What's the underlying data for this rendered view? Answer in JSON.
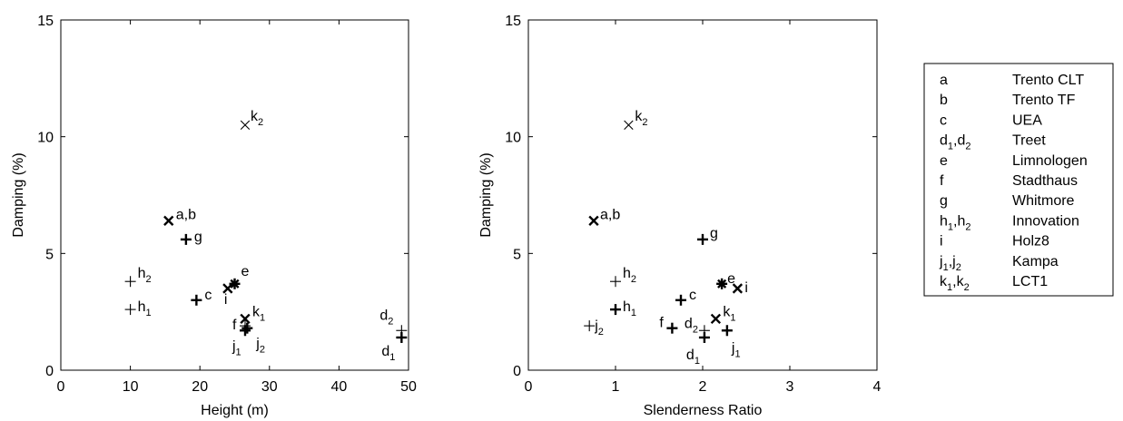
{
  "chart_data": [
    {
      "type": "scatter",
      "xlabel": "Height (m)",
      "ylabel": "Damping (%)",
      "xlim": [
        0,
        50
      ],
      "ylim": [
        0,
        15
      ],
      "xticks": [
        "0",
        "10",
        "20",
        "30",
        "40",
        "50"
      ],
      "yticks": [
        "0",
        "5",
        "10",
        "15"
      ],
      "grid": false,
      "points": [
        {
          "x": 15.5,
          "y": 6.4,
          "marker": "x-bold",
          "label": "a,b"
        },
        {
          "x": 18.0,
          "y": 5.6,
          "marker": "plus-bold",
          "label": "g"
        },
        {
          "x": 26.5,
          "y": 10.5,
          "marker": "x-thin",
          "label": "k",
          "sub": "2"
        },
        {
          "x": 10.0,
          "y": 3.8,
          "marker": "plus-thin",
          "label": "h",
          "sub": "2"
        },
        {
          "x": 10.0,
          "y": 2.6,
          "marker": "plus-thin",
          "label": "h",
          "sub": "1"
        },
        {
          "x": 19.5,
          "y": 3.0,
          "marker": "plus-bold",
          "label": "c"
        },
        {
          "x": 25.0,
          "y": 3.7,
          "marker": "star-bold",
          "label": "e"
        },
        {
          "x": 24.0,
          "y": 3.5,
          "marker": "x-bold",
          "label": "i"
        },
        {
          "x": 26.5,
          "y": 2.2,
          "marker": "x-bold",
          "label": "k",
          "sub": "1"
        },
        {
          "x": 26.5,
          "y": 1.9,
          "marker": "plus-thin",
          "label": "f"
        },
        {
          "x": 26.5,
          "y": 1.7,
          "marker": "plus-bold",
          "label": "j",
          "sub": "1"
        },
        {
          "x": 26.8,
          "y": 1.8,
          "marker": "plus-bold",
          "label": "j",
          "sub": "2"
        },
        {
          "x": 49.0,
          "y": 1.7,
          "marker": "plus-thin",
          "label": "d",
          "sub": "2"
        },
        {
          "x": 49.0,
          "y": 1.4,
          "marker": "plus-bold",
          "label": "d",
          "sub": "1"
        }
      ]
    },
    {
      "type": "scatter",
      "xlabel": "Slenderness Ratio",
      "ylabel": "Damping (%)",
      "xlim": [
        0,
        4
      ],
      "ylim": [
        0,
        15
      ],
      "xticks": [
        "0",
        "1",
        "2",
        "3",
        "4"
      ],
      "yticks": [
        "0",
        "5",
        "10",
        "15"
      ],
      "grid": false,
      "points": [
        {
          "x": 1.15,
          "y": 10.5,
          "marker": "x-thin",
          "label": "k",
          "sub": "2"
        },
        {
          "x": 0.75,
          "y": 6.4,
          "marker": "x-bold",
          "label": "a,b"
        },
        {
          "x": 2.0,
          "y": 5.6,
          "marker": "plus-bold",
          "label": "g"
        },
        {
          "x": 1.0,
          "y": 3.8,
          "marker": "plus-thin",
          "label": "h",
          "sub": "2"
        },
        {
          "x": 1.0,
          "y": 2.6,
          "marker": "plus-bold",
          "label": "h",
          "sub": "1"
        },
        {
          "x": 0.7,
          "y": 1.9,
          "marker": "plus-thin",
          "label": "j",
          "sub": "2"
        },
        {
          "x": 1.75,
          "y": 3.0,
          "marker": "plus-bold",
          "label": "c"
        },
        {
          "x": 2.22,
          "y": 3.7,
          "marker": "star-bold",
          "label": "e"
        },
        {
          "x": 2.4,
          "y": 3.5,
          "marker": "x-bold",
          "label": "i"
        },
        {
          "x": 1.65,
          "y": 1.8,
          "marker": "plus-bold",
          "label": "f"
        },
        {
          "x": 2.15,
          "y": 2.2,
          "marker": "x-bold",
          "label": "k",
          "sub": "1"
        },
        {
          "x": 2.02,
          "y": 1.7,
          "marker": "plus-thin",
          "label": "d",
          "sub": "2"
        },
        {
          "x": 2.02,
          "y": 1.4,
          "marker": "plus-bold",
          "label": "d",
          "sub": "1"
        },
        {
          "x": 2.28,
          "y": 1.7,
          "marker": "plus-bold",
          "label": "j",
          "sub": "1"
        }
      ]
    }
  ],
  "legend": [
    {
      "key": [
        {
          "t": "a"
        }
      ],
      "name": "Trento CLT"
    },
    {
      "key": [
        {
          "t": "b"
        }
      ],
      "name": "Trento TF"
    },
    {
      "key": [
        {
          "t": "c"
        }
      ],
      "name": "UEA"
    },
    {
      "key": [
        {
          "t": "d"
        },
        {
          "t": "1",
          "sub": true
        },
        {
          "t": ",d"
        },
        {
          "t": "2",
          "sub": true
        }
      ],
      "name": "Treet"
    },
    {
      "key": [
        {
          "t": "e"
        }
      ],
      "name": "Limnologen"
    },
    {
      "key": [
        {
          "t": "f"
        }
      ],
      "name": "Stadthaus"
    },
    {
      "key": [
        {
          "t": "g"
        }
      ],
      "name": "Whitmore"
    },
    {
      "key": [
        {
          "t": "h"
        },
        {
          "t": "1",
          "sub": true
        },
        {
          "t": ",h"
        },
        {
          "t": "2",
          "sub": true
        }
      ],
      "name": "Innovation"
    },
    {
      "key": [
        {
          "t": "i"
        }
      ],
      "name": "Holz8"
    },
    {
      "key": [
        {
          "t": "j"
        },
        {
          "t": "1",
          "sub": true
        },
        {
          "t": ",j"
        },
        {
          "t": "2",
          "sub": true
        }
      ],
      "name": "Kampa"
    },
    {
      "key": [
        {
          "t": "k"
        },
        {
          "t": "1",
          "sub": true
        },
        {
          "t": ",k"
        },
        {
          "t": "2",
          "sub": true
        }
      ],
      "name": "LCT1"
    }
  ]
}
